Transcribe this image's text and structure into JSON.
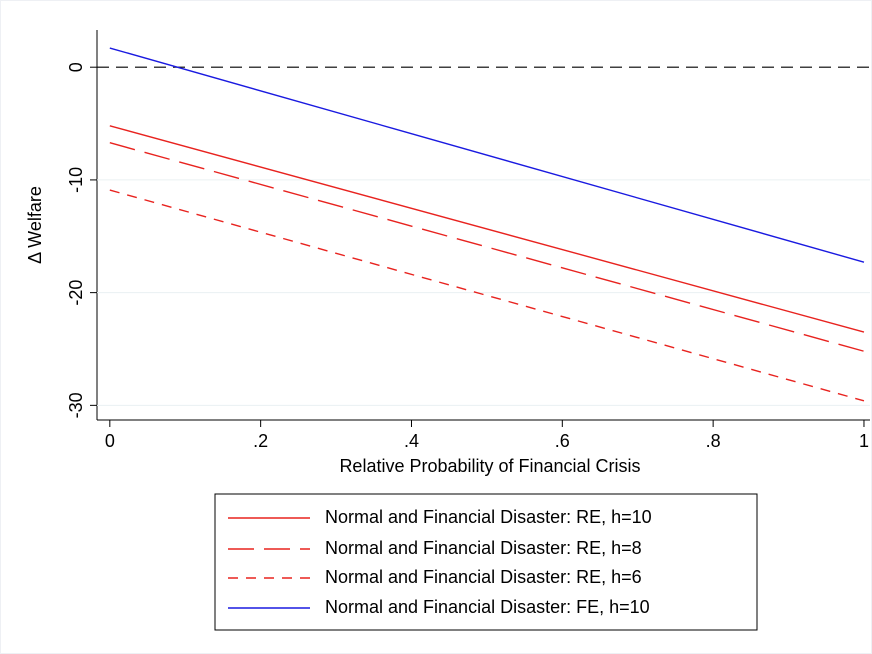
{
  "chart_data": {
    "type": "line",
    "xlabel": "Relative Probability of Financial Crisis",
    "ylabel": "Δ Welfare",
    "x": [
      0,
      1
    ],
    "series": [
      {
        "name": "Normal and Financial Disaster: RE, h=10",
        "color": "#e8231f",
        "dash": "solid",
        "values": [
          -5.2,
          -23.5
        ]
      },
      {
        "name": "Normal and Financial Disaster: RE, h=8",
        "color": "#e8231f",
        "dash": "long",
        "values": [
          -6.7,
          -25.2
        ]
      },
      {
        "name": "Normal and Financial Disaster: RE, h=6",
        "color": "#e8231f",
        "dash": "short",
        "values": [
          -10.9,
          -29.6
        ]
      },
      {
        "name": "Normal and Financial Disaster: FE, h=10",
        "color": "#1a1ae0",
        "dash": "solid",
        "values": [
          1.7,
          -17.3
        ]
      }
    ],
    "yline": 0,
    "xlim": [
      -0.017,
      1.008
    ],
    "ylim": [
      -31.3,
      3.3
    ],
    "xticks": [
      0,
      {
        "value": 0.2,
        "label": ".2"
      },
      {
        "value": 0.4,
        "label": ".4"
      },
      {
        "value": 0.6,
        "label": ".6"
      },
      {
        "value": 0.8,
        "label": ".8"
      },
      1
    ],
    "yticks": [
      0,
      -10,
      -20,
      -30
    ],
    "grid": true,
    "legend": "bottom"
  }
}
